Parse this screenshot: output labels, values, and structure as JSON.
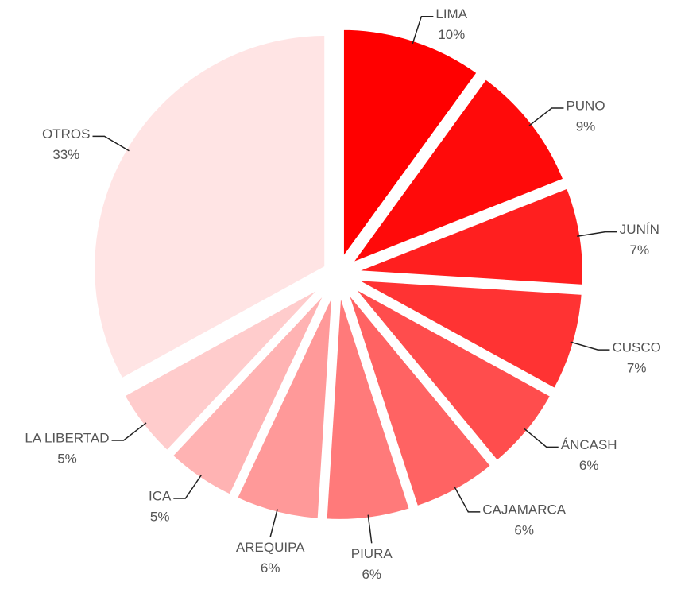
{
  "chart_data": {
    "type": "pie",
    "categories": [
      "LIMA",
      "PUNO",
      "JUNÍN",
      "CUSCO",
      "ÁNCASH",
      "CAJAMARCA",
      "PIURA",
      "AREQUIPA",
      "ICA",
      "LA LIBERTAD",
      "OTROS"
    ],
    "values": [
      10,
      9,
      7,
      7,
      6,
      6,
      6,
      6,
      5,
      5,
      33
    ],
    "value_labels": [
      "10%",
      "9%",
      "7%",
      "7%",
      "6%",
      "6%",
      "6%",
      "6%",
      "5%",
      "5%",
      "33%"
    ],
    "colors": [
      "#ff0000",
      "#ff0a0a",
      "#ff1f1f",
      "#ff3333",
      "#ff4d4d",
      "#ff6363",
      "#ff7a7a",
      "#ff9999",
      "#ffb3b3",
      "#ffcccc",
      "#ffe4e4"
    ]
  }
}
